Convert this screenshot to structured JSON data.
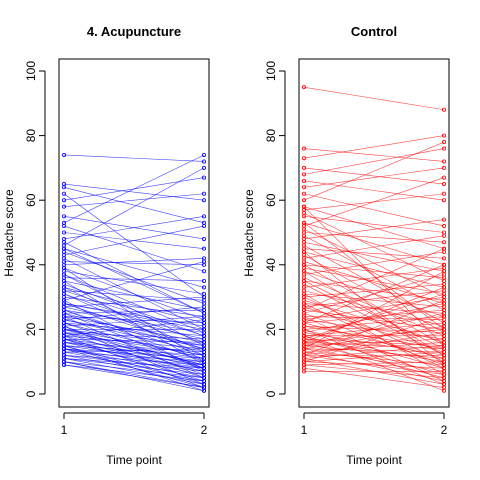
{
  "chart_data": [
    {
      "type": "line",
      "title": "4. Acupuncture",
      "xlabel": "Time point",
      "ylabel": "Headache score",
      "x": [
        1,
        2
      ],
      "x_ticks": [
        "1",
        "2"
      ],
      "y_ticks": [
        "0",
        "20",
        "40",
        "60",
        "80",
        "100"
      ],
      "ylim": [
        0,
        100
      ],
      "color": "#0000ff",
      "grid": false,
      "legend": "none",
      "series": [
        {
          "values": [
            74,
            72
          ]
        },
        {
          "values": [
            65,
            60
          ]
        },
        {
          "values": [
            64,
            53
          ]
        },
        {
          "values": [
            62,
            30
          ]
        },
        {
          "values": [
            60,
            67
          ]
        },
        {
          "values": [
            58,
            62
          ]
        },
        {
          "values": [
            55,
            48
          ]
        },
        {
          "values": [
            53,
            74
          ]
        },
        {
          "values": [
            52,
            38
          ]
        },
        {
          "values": [
            50,
            45
          ]
        },
        {
          "values": [
            48,
            55
          ]
        },
        {
          "values": [
            47,
            25
          ]
        },
        {
          "values": [
            46,
            70
          ]
        },
        {
          "values": [
            45,
            33
          ]
        },
        {
          "values": [
            44,
            28
          ]
        },
        {
          "values": [
            43,
            52
          ]
        },
        {
          "values": [
            42,
            20
          ]
        },
        {
          "values": [
            41,
            40
          ]
        },
        {
          "values": [
            40,
            42
          ]
        },
        {
          "values": [
            39,
            23
          ]
        },
        {
          "values": [
            38,
            31
          ]
        },
        {
          "values": [
            37,
            15
          ]
        },
        {
          "values": [
            36,
            35
          ]
        },
        {
          "values": [
            35,
            26
          ]
        },
        {
          "values": [
            34,
            18
          ]
        },
        {
          "values": [
            33,
            22
          ]
        },
        {
          "values": [
            32,
            29
          ]
        },
        {
          "values": [
            31,
            12
          ]
        },
        {
          "values": [
            30,
            24
          ]
        },
        {
          "values": [
            29,
            41
          ]
        },
        {
          "values": [
            28,
            14
          ]
        },
        {
          "values": [
            28,
            21
          ]
        },
        {
          "values": [
            27,
            17
          ]
        },
        {
          "values": [
            27,
            30
          ]
        },
        {
          "values": [
            26,
            10
          ]
        },
        {
          "values": [
            26,
            19
          ]
        },
        {
          "values": [
            25,
            26
          ]
        },
        {
          "values": [
            25,
            8
          ]
        },
        {
          "values": [
            24,
            16
          ]
        },
        {
          "values": [
            24,
            22
          ]
        },
        {
          "values": [
            23,
            13
          ]
        },
        {
          "values": [
            23,
            27
          ]
        },
        {
          "values": [
            22,
            11
          ]
        },
        {
          "values": [
            22,
            18
          ]
        },
        {
          "values": [
            21,
            6
          ]
        },
        {
          "values": [
            21,
            24
          ]
        },
        {
          "values": [
            20,
            15
          ]
        },
        {
          "values": [
            20,
            9
          ]
        },
        {
          "values": [
            20,
            20
          ]
        },
        {
          "values": [
            19,
            12
          ]
        },
        {
          "values": [
            19,
            5
          ]
        },
        {
          "values": [
            19,
            17
          ]
        },
        {
          "values": [
            18,
            14
          ]
        },
        {
          "values": [
            18,
            8
          ]
        },
        {
          "values": [
            18,
            23
          ]
        },
        {
          "values": [
            17,
            11
          ]
        },
        {
          "values": [
            17,
            4
          ]
        },
        {
          "values": [
            17,
            16
          ]
        },
        {
          "values": [
            16,
            10
          ]
        },
        {
          "values": [
            16,
            13
          ]
        },
        {
          "values": [
            16,
            7
          ]
        },
        {
          "values": [
            15,
            9
          ]
        },
        {
          "values": [
            15,
            12
          ]
        },
        {
          "values": [
            15,
            3
          ]
        },
        {
          "values": [
            14,
            8
          ]
        },
        {
          "values": [
            14,
            11
          ]
        },
        {
          "values": [
            14,
            6
          ]
        },
        {
          "values": [
            13,
            10
          ]
        },
        {
          "values": [
            13,
            5
          ]
        },
        {
          "values": [
            13,
            14
          ]
        },
        {
          "values": [
            12,
            7
          ]
        },
        {
          "values": [
            12,
            4
          ]
        },
        {
          "values": [
            12,
            9
          ]
        },
        {
          "values": [
            11,
            6
          ]
        },
        {
          "values": [
            11,
            3
          ]
        },
        {
          "values": [
            11,
            8
          ]
        },
        {
          "values": [
            10,
            2
          ]
        },
        {
          "values": [
            10,
            5
          ]
        },
        {
          "values": [
            10,
            1
          ]
        },
        {
          "values": [
            9,
            4
          ]
        },
        {
          "values": [
            9,
            2
          ]
        },
        {
          "values": [
            29,
            7
          ]
        },
        {
          "values": [
            33,
            13
          ]
        },
        {
          "values": [
            37,
            19
          ]
        },
        {
          "values": [
            39,
            10
          ]
        },
        {
          "values": [
            45,
            25
          ]
        },
        {
          "values": [
            24,
            5
          ]
        },
        {
          "values": [
            21,
            3
          ]
        },
        {
          "values": [
            18,
            2
          ]
        },
        {
          "values": [
            26,
            12
          ]
        },
        {
          "values": [
            31,
            16
          ]
        },
        {
          "values": [
            35,
            9
          ]
        },
        {
          "values": [
            15,
            1
          ]
        },
        {
          "values": [
            23,
            15
          ]
        },
        {
          "values": [
            19,
            9
          ]
        },
        {
          "values": [
            25,
            14
          ]
        },
        {
          "values": [
            22,
            8
          ]
        },
        {
          "values": [
            20,
            12
          ]
        },
        {
          "values": [
            17,
            7
          ]
        },
        {
          "values": [
            14,
            2
          ]
        },
        {
          "values": [
            28,
            20
          ]
        },
        {
          "values": [
            32,
            18
          ]
        }
      ]
    },
    {
      "type": "line",
      "title": "Control",
      "xlabel": "Time point",
      "ylabel": "Headache score",
      "x": [
        1,
        2
      ],
      "x_ticks": [
        "1",
        "2"
      ],
      "y_ticks": [
        "0",
        "20",
        "40",
        "60",
        "80",
        "100"
      ],
      "ylim": [
        0,
        100
      ],
      "color": "#ff0000",
      "grid": false,
      "legend": "none",
      "series": [
        {
          "values": [
            95,
            88
          ]
        },
        {
          "values": [
            76,
            72
          ]
        },
        {
          "values": [
            73,
            80
          ]
        },
        {
          "values": [
            70,
            65
          ]
        },
        {
          "values": [
            68,
            76
          ]
        },
        {
          "values": [
            66,
            60
          ]
        },
        {
          "values": [
            64,
            70
          ]
        },
        {
          "values": [
            62,
            52
          ]
        },
        {
          "values": [
            60,
            78
          ]
        },
        {
          "values": [
            58,
            45
          ]
        },
        {
          "values": [
            57,
            62
          ]
        },
        {
          "values": [
            56,
            35
          ]
        },
        {
          "values": [
            55,
            50
          ]
        },
        {
          "values": [
            53,
            40
          ]
        },
        {
          "values": [
            52,
            67
          ]
        },
        {
          "values": [
            51,
            30
          ]
        },
        {
          "values": [
            50,
            47
          ]
        },
        {
          "values": [
            49,
            26
          ]
        },
        {
          "values": [
            48,
            54
          ]
        },
        {
          "values": [
            47,
            38
          ]
        },
        {
          "values": [
            46,
            22
          ]
        },
        {
          "values": [
            45,
            42
          ]
        },
        {
          "values": [
            44,
            33
          ]
        },
        {
          "values": [
            43,
            19
          ]
        },
        {
          "values": [
            42,
            49
          ]
        },
        {
          "values": [
            41,
            28
          ]
        },
        {
          "values": [
            40,
            36
          ]
        },
        {
          "values": [
            40,
            15
          ]
        },
        {
          "values": [
            39,
            31
          ]
        },
        {
          "values": [
            38,
            24
          ]
        },
        {
          "values": [
            37,
            44
          ]
        },
        {
          "values": [
            36,
            18
          ]
        },
        {
          "values": [
            35,
            29
          ]
        },
        {
          "values": [
            34,
            12
          ]
        },
        {
          "values": [
            33,
            39
          ]
        },
        {
          "values": [
            32,
            21
          ]
        },
        {
          "values": [
            31,
            27
          ]
        },
        {
          "values": [
            30,
            10
          ]
        },
        {
          "values": [
            30,
            34
          ]
        },
        {
          "values": [
            29,
            16
          ]
        },
        {
          "values": [
            28,
            25
          ]
        },
        {
          "values": [
            27,
            32
          ]
        },
        {
          "values": [
            27,
            13
          ]
        },
        {
          "values": [
            26,
            20
          ]
        },
        {
          "values": [
            25,
            37
          ]
        },
        {
          "values": [
            25,
            9
          ]
        },
        {
          "values": [
            24,
            23
          ]
        },
        {
          "values": [
            23,
            17
          ]
        },
        {
          "values": [
            23,
            30
          ]
        },
        {
          "values": [
            22,
            11
          ]
        },
        {
          "values": [
            22,
            26
          ]
        },
        {
          "values": [
            21,
            14
          ]
        },
        {
          "values": [
            21,
            19
          ]
        },
        {
          "values": [
            20,
            8
          ]
        },
        {
          "values": [
            20,
            24
          ]
        },
        {
          "values": [
            19,
            28
          ]
        },
        {
          "values": [
            19,
            12
          ]
        },
        {
          "values": [
            18,
            18
          ]
        },
        {
          "values": [
            18,
            6
          ]
        },
        {
          "values": [
            18,
            22
          ]
        },
        {
          "values": [
            17,
            15
          ]
        },
        {
          "values": [
            17,
            31
          ]
        },
        {
          "values": [
            17,
            10
          ]
        },
        {
          "values": [
            16,
            20
          ]
        },
        {
          "values": [
            16,
            5
          ]
        },
        {
          "values": [
            16,
            14
          ]
        },
        {
          "values": [
            15,
            25
          ]
        },
        {
          "values": [
            15,
            11
          ]
        },
        {
          "values": [
            15,
            17
          ]
        },
        {
          "values": [
            14,
            7
          ]
        },
        {
          "values": [
            14,
            21
          ]
        },
        {
          "values": [
            14,
            13
          ]
        },
        {
          "values": [
            13,
            4
          ]
        },
        {
          "values": [
            13,
            16
          ]
        },
        {
          "values": [
            13,
            9
          ]
        },
        {
          "values": [
            12,
            19
          ]
        },
        {
          "values": [
            12,
            6
          ]
        },
        {
          "values": [
            12,
            12
          ]
        },
        {
          "values": [
            11,
            15
          ]
        },
        {
          "values": [
            11,
            3
          ]
        },
        {
          "values": [
            10,
            8
          ]
        },
        {
          "values": [
            10,
            13
          ]
        },
        {
          "values": [
            9,
            5
          ]
        },
        {
          "values": [
            9,
            10
          ]
        },
        {
          "values": [
            8,
            2
          ]
        },
        {
          "values": [
            7,
            7
          ]
        },
        {
          "values": [
            58,
            15
          ]
        },
        {
          "values": [
            53,
            20
          ]
        },
        {
          "values": [
            44,
            9
          ]
        },
        {
          "values": [
            38,
            12
          ]
        },
        {
          "values": [
            35,
            14
          ]
        },
        {
          "values": [
            31,
            6
          ]
        },
        {
          "values": [
            28,
            8
          ]
        },
        {
          "values": [
            24,
            4
          ]
        },
        {
          "values": [
            20,
            3
          ]
        },
        {
          "values": [
            18,
            1
          ]
        },
        {
          "values": [
            26,
            45
          ]
        },
        {
          "values": [
            22,
            40
          ]
        },
        {
          "values": [
            16,
            33
          ]
        },
        {
          "values": [
            12,
            29
          ]
        },
        {
          "values": [
            10,
            24
          ]
        },
        {
          "values": [
            14,
            38
          ]
        }
      ]
    }
  ]
}
